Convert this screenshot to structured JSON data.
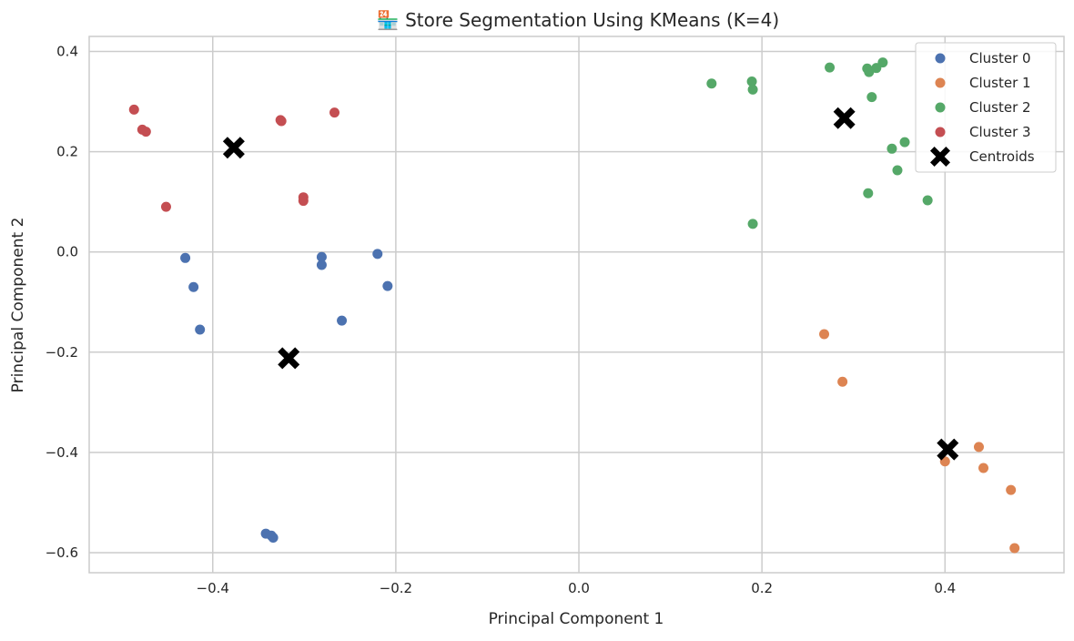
{
  "chart_data": {
    "type": "scatter",
    "title": "🏪 Store Segmentation Using KMeans (K=4)",
    "xlabel": "Principal Component 1",
    "ylabel": "Principal Component 2",
    "xlim": [
      -0.535,
      0.53
    ],
    "ylim": [
      -0.64,
      0.43
    ],
    "xticks": [
      -0.4,
      -0.2,
      0.0,
      0.2,
      0.4
    ],
    "xtick_labels": [
      "−0.4",
      "−0.2",
      "0.0",
      "0.2",
      "0.4"
    ],
    "yticks": [
      0.4,
      0.2,
      0.0,
      -0.2,
      -0.4,
      -0.6
    ],
    "ytick_labels": [
      "0.4",
      "0.2",
      "0.0",
      "−0.2",
      "−0.4",
      "−0.6"
    ],
    "grid": true,
    "legend_position": "top-right",
    "series": [
      {
        "name": "Cluster 0",
        "color": "#4c72b0",
        "points": [
          [
            -0.43,
            -0.012
          ],
          [
            -0.421,
            -0.07
          ],
          [
            -0.414,
            -0.155
          ],
          [
            -0.281,
            -0.01
          ],
          [
            -0.281,
            -0.026
          ],
          [
            -0.22,
            -0.004
          ],
          [
            -0.209,
            -0.068
          ],
          [
            -0.259,
            -0.137
          ],
          [
            -0.342,
            -0.562
          ],
          [
            -0.336,
            -0.566
          ],
          [
            -0.334,
            -0.57
          ]
        ]
      },
      {
        "name": "Cluster 1",
        "color": "#dd8452",
        "points": [
          [
            0.268,
            -0.164
          ],
          [
            0.288,
            -0.259
          ],
          [
            0.4,
            -0.418
          ],
          [
            0.437,
            -0.389
          ],
          [
            0.442,
            -0.431
          ],
          [
            0.472,
            -0.475
          ],
          [
            0.476,
            -0.591
          ]
        ]
      },
      {
        "name": "Cluster 2",
        "color": "#55a868",
        "points": [
          [
            0.145,
            0.336
          ],
          [
            0.189,
            0.34
          ],
          [
            0.19,
            0.324
          ],
          [
            0.19,
            0.056
          ],
          [
            0.274,
            0.368
          ],
          [
            0.315,
            0.366
          ],
          [
            0.317,
            0.359
          ],
          [
            0.325,
            0.367
          ],
          [
            0.332,
            0.378
          ],
          [
            0.32,
            0.309
          ],
          [
            0.356,
            0.219
          ],
          [
            0.342,
            0.206
          ],
          [
            0.348,
            0.163
          ],
          [
            0.316,
            0.117
          ],
          [
            0.381,
            0.103
          ]
        ]
      },
      {
        "name": "Cluster 3",
        "color": "#c44e52",
        "points": [
          [
            -0.486,
            0.284
          ],
          [
            -0.477,
            0.244
          ],
          [
            -0.473,
            0.24
          ],
          [
            -0.451,
            0.09
          ],
          [
            -0.326,
            0.263
          ],
          [
            -0.325,
            0.261
          ],
          [
            -0.267,
            0.278
          ],
          [
            -0.301,
            0.109
          ],
          [
            -0.301,
            0.102
          ]
        ]
      }
    ],
    "centroids": {
      "name": "Centroids",
      "color": "#000000",
      "marker": "X",
      "points": [
        [
          -0.377,
          0.208
        ],
        [
          -0.317,
          -0.212
        ],
        [
          0.29,
          0.267
        ],
        [
          0.403,
          -0.394
        ]
      ]
    }
  }
}
